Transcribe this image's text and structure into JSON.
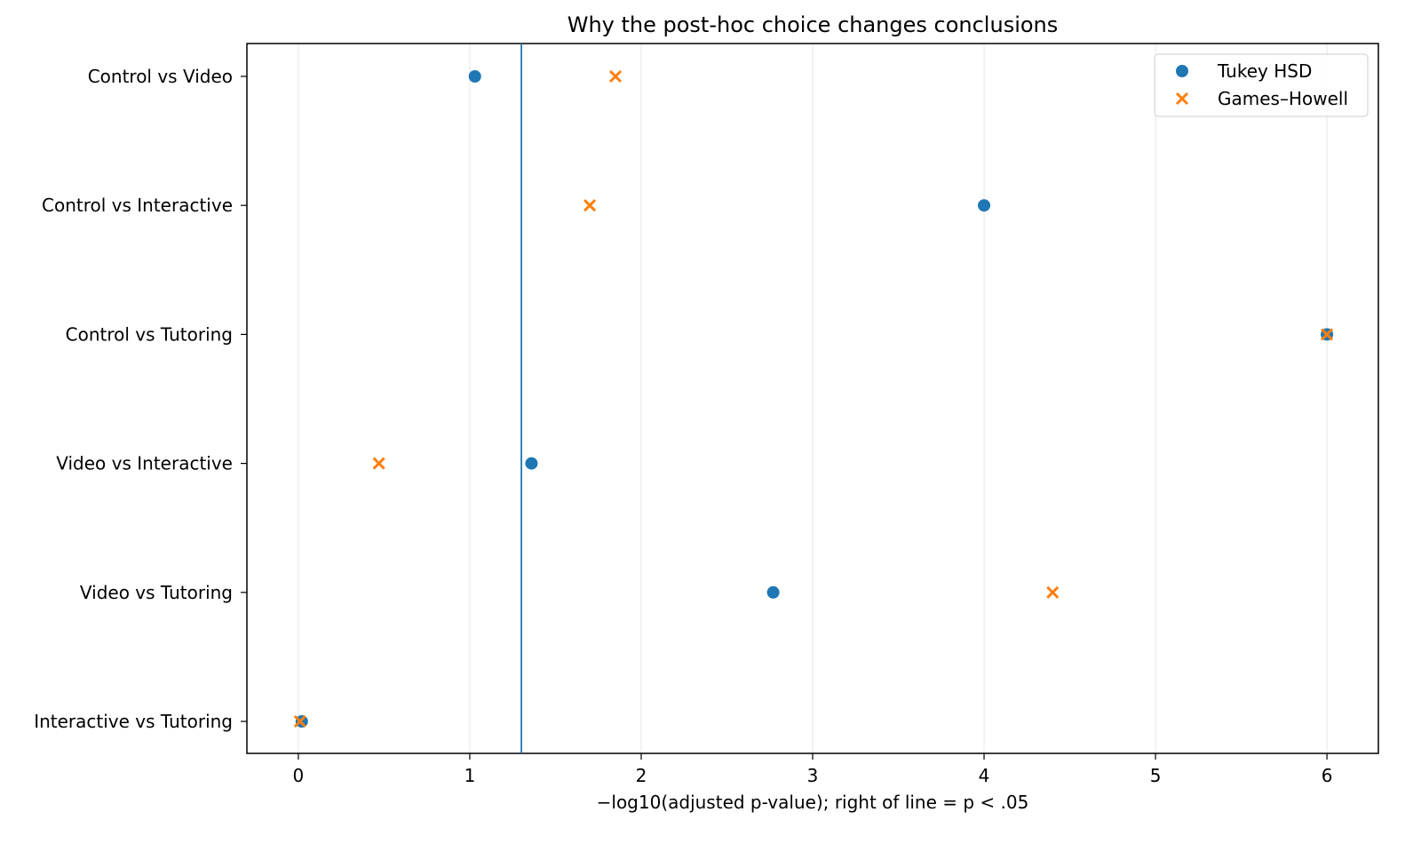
{
  "chart_data": {
    "type": "scatter",
    "title": "Why the post-hoc choice changes conclusions",
    "xlabel": "−log10(adjusted p-value); right of line = p < .05",
    "ylabel": "",
    "xlim": [
      -0.3,
      6.3
    ],
    "x_ticks": [
      0,
      1,
      2,
      3,
      4,
      5,
      6
    ],
    "x_tick_labels": [
      "0",
      "1",
      "2",
      "3",
      "4",
      "5",
      "6"
    ],
    "categories": [
      "Control vs Video",
      "Control vs Interactive",
      "Control vs Tutoring",
      "Video vs Interactive",
      "Video vs Tutoring",
      "Interactive vs Tutoring"
    ],
    "series": [
      {
        "name": "Tukey HSD",
        "marker": "circle",
        "color": "#1f77b4",
        "values": [
          1.03,
          4.0,
          6.0,
          1.36,
          2.77,
          0.02
        ]
      },
      {
        "name": "Games–Howell",
        "marker": "x",
        "color": "#ff7f0e",
        "values": [
          1.85,
          1.7,
          6.0,
          0.47,
          4.4,
          0.01
        ]
      }
    ],
    "reference_line": {
      "x": 1.30103,
      "color": "#1f77b4"
    },
    "grid": {
      "x": true,
      "y": false
    },
    "legend_position": "top-right"
  }
}
